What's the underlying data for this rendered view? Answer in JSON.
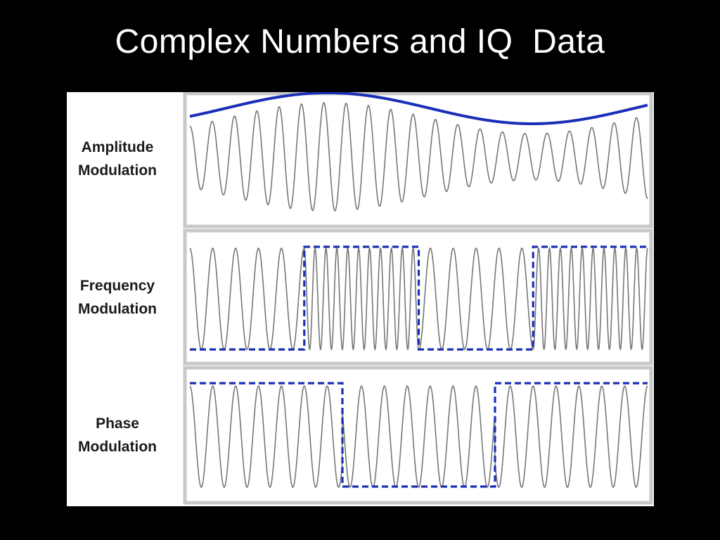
{
  "slide": {
    "title": "Complex Numbers and IQ  Data"
  },
  "figure": {
    "panels": [
      {
        "id": "am",
        "label_line1": "Amplitude",
        "label_line2": "Modulation",
        "overlay": "envelope"
      },
      {
        "id": "fm",
        "label_line1": "Frequency",
        "label_line2": "Modulation",
        "overlay": "digital-signal"
      },
      {
        "id": "pm",
        "label_line1": "Phase",
        "label_line2": "Modulation",
        "overlay": "digital-signal"
      }
    ],
    "colors": {
      "carrier": "#777777",
      "modulating": "#1a2fb8",
      "panel_border": "#c8c8c8",
      "panel_bg": "#ffffff"
    },
    "digital_signal_fm": [
      0,
      1,
      0,
      1
    ],
    "digital_signal_pm": [
      1,
      0,
      1
    ]
  }
}
